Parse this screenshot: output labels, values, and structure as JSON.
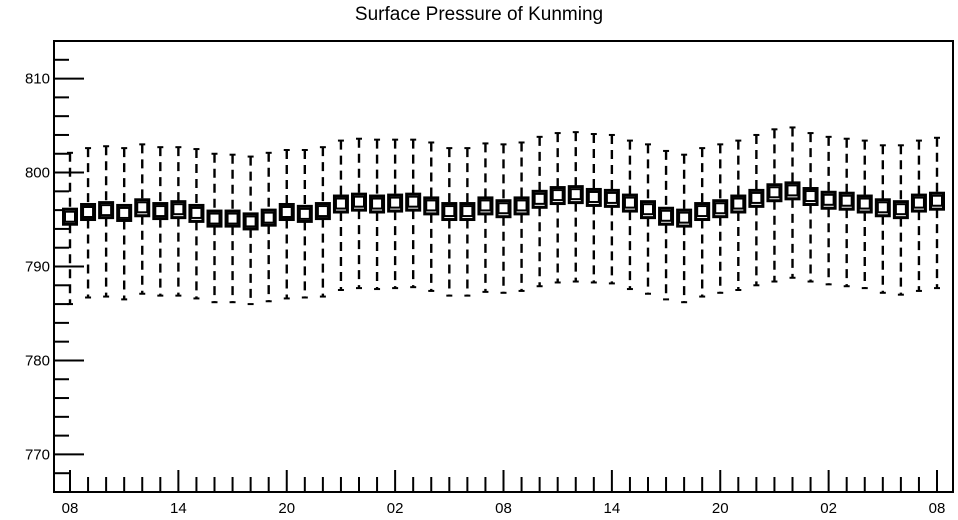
{
  "chart_data": {
    "type": "box",
    "title": "Surface Pressure of Kunming",
    "xlabel": "",
    "ylabel": "",
    "ylim": [
      766,
      814
    ],
    "y_ticks": [
      770,
      780,
      790,
      800,
      810
    ],
    "x_ticks": [
      "08",
      "14",
      "20",
      "02",
      "08",
      "14",
      "20",
      "02",
      "08"
    ],
    "grid": false,
    "series": [
      {
        "x": [
          "08",
          "09",
          "10",
          "11",
          "12",
          "13",
          "14",
          "15",
          "16",
          "17",
          "18",
          "19",
          "20",
          "21",
          "22",
          "23",
          "00",
          "01",
          "02",
          "03",
          "04",
          "05",
          "06",
          "07",
          "08",
          "09",
          "10",
          "11",
          "12",
          "13",
          "14",
          "15",
          "16",
          "17",
          "18",
          "19",
          "20",
          "21",
          "22",
          "23",
          "00",
          "01",
          "02",
          "03",
          "04",
          "05",
          "06",
          "07",
          "08"
        ],
        "median": [
          795.3,
          795.8,
          796.0,
          795.7,
          796.3,
          795.9,
          796.1,
          795.7,
          795.1,
          795.1,
          794.8,
          795.2,
          795.8,
          795.6,
          795.9,
          796.7,
          796.9,
          796.7,
          796.8,
          796.9,
          796.5,
          795.9,
          795.9,
          796.5,
          796.2,
          796.5,
          797.2,
          797.6,
          797.7,
          797.4,
          797.3,
          796.8,
          796.1,
          795.4,
          795.2,
          795.9,
          796.2,
          796.7,
          797.3,
          797.9,
          798.1,
          797.5,
          797.1,
          797.0,
          796.7,
          796.3,
          796.1,
          796.8,
          797.0
        ],
        "q1": [
          794.5,
          795.0,
          795.2,
          794.9,
          795.4,
          795.1,
          795.2,
          794.8,
          794.3,
          794.3,
          794.0,
          794.4,
          795.0,
          794.8,
          795.1,
          795.8,
          796.0,
          795.8,
          795.9,
          796.0,
          795.6,
          795.0,
          795.0,
          795.6,
          795.3,
          795.6,
          796.3,
          796.7,
          796.8,
          796.5,
          796.4,
          795.9,
          795.2,
          794.5,
          794.3,
          795.0,
          795.3,
          795.8,
          796.4,
          797.0,
          797.2,
          796.6,
          796.2,
          796.1,
          795.8,
          795.4,
          795.2,
          795.9,
          796.1
        ],
        "q3": [
          796.1,
          796.6,
          796.8,
          796.5,
          797.1,
          796.7,
          796.9,
          796.5,
          795.9,
          795.9,
          795.6,
          796.0,
          796.6,
          796.4,
          796.7,
          797.5,
          797.7,
          797.5,
          797.6,
          797.7,
          797.3,
          796.7,
          796.7,
          797.3,
          797.0,
          797.3,
          798.0,
          798.4,
          798.5,
          798.2,
          798.1,
          797.6,
          796.9,
          796.2,
          796.0,
          796.7,
          797.0,
          797.5,
          798.1,
          798.7,
          798.9,
          798.3,
          797.9,
          797.8,
          797.5,
          797.1,
          796.9,
          797.6,
          797.8
        ],
        "whisker_low": [
          786.0,
          786.7,
          786.8,
          786.5,
          787.1,
          786.9,
          786.9,
          786.6,
          786.2,
          786.2,
          786.0,
          786.3,
          786.6,
          786.7,
          786.8,
          787.5,
          787.7,
          787.6,
          787.7,
          787.8,
          787.4,
          786.9,
          786.9,
          787.3,
          787.2,
          787.4,
          787.9,
          788.3,
          788.4,
          788.3,
          788.2,
          787.6,
          787.1,
          786.5,
          786.2,
          786.8,
          787.2,
          787.5,
          788.0,
          788.4,
          788.8,
          788.4,
          788.1,
          787.9,
          787.7,
          787.2,
          787.0,
          787.4,
          787.7
        ],
        "whisker_high": [
          802.1,
          802.6,
          802.8,
          802.6,
          803.0,
          802.7,
          802.7,
          802.5,
          802.0,
          801.9,
          801.7,
          802.1,
          802.4,
          802.4,
          802.7,
          803.4,
          803.6,
          803.5,
          803.5,
          803.5,
          803.2,
          802.6,
          802.6,
          803.1,
          803.0,
          803.2,
          803.8,
          804.2,
          804.3,
          804.1,
          804.0,
          803.4,
          803.0,
          802.3,
          801.9,
          802.6,
          803.0,
          803.4,
          804.0,
          804.6,
          804.8,
          804.2,
          803.8,
          803.6,
          803.4,
          802.9,
          802.9,
          803.4,
          803.7
        ]
      }
    ]
  }
}
